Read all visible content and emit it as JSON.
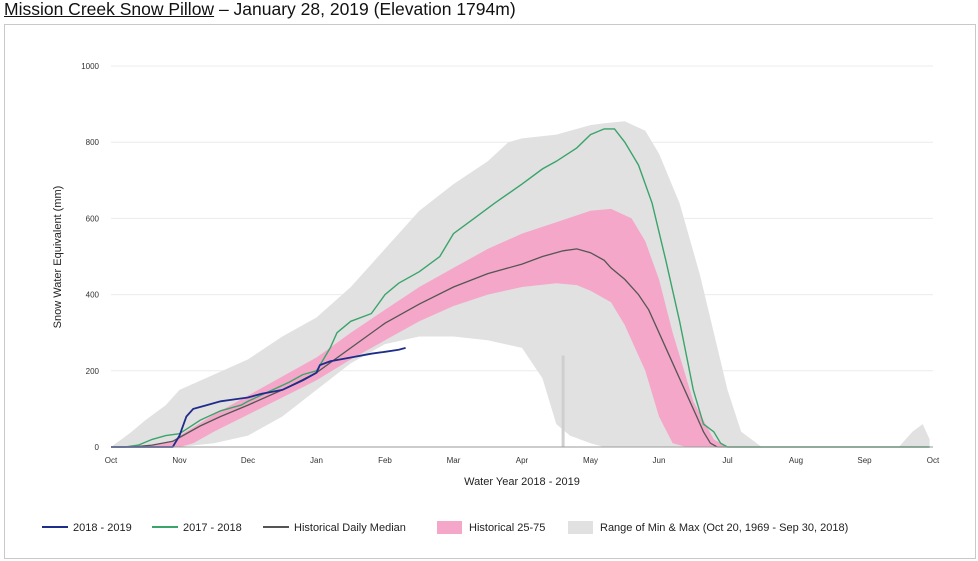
{
  "title": {
    "link_text": "Mission Creek Snow Pillow",
    "rest_text": " – January 28, 2019 (Elevation 1794m)"
  },
  "chart_data": {
    "type": "line",
    "xlabel": "Water Year 2018 - 2019",
    "ylabel": "Snow Water Equivalent (mm)",
    "ylim": [
      0,
      1000
    ],
    "yticks": [
      "0",
      "200",
      "400",
      "600",
      "800",
      "1000"
    ],
    "xticks": [
      "Oct",
      "Nov",
      "Dec",
      "Jan",
      "Feb",
      "Mar",
      "Apr",
      "May",
      "Jun",
      "Jul",
      "Aug",
      "Sep",
      "Oct"
    ],
    "grid": "horizontal",
    "legend_position": "bottom",
    "colors": {
      "s2019": "#1f2d8a",
      "s2018": "#3aa46a",
      "median": "#555555",
      "band": "#f4a7c9",
      "range": "#e1e1e1"
    },
    "legend": [
      {
        "label": "2018 - 2019",
        "kind": "line",
        "color": "#1f2d8a"
      },
      {
        "label": "2017 - 2018",
        "kind": "line",
        "color": "#3aa46a"
      },
      {
        "label": "Historical Daily Median",
        "kind": "line",
        "color": "#555555"
      },
      {
        "label": "Historical 25-75",
        "kind": "box",
        "color": "#f4a7c9"
      },
      {
        "label": "Range of Min & Max (Oct 20, 1969 - Sep 30, 2018)",
        "kind": "box",
        "color": "#e1e1e1"
      }
    ],
    "range_max": {
      "x": [
        0,
        0.3,
        0.5,
        0.8,
        1,
        1.5,
        2,
        2.5,
        3,
        3.5,
        4,
        4.5,
        5,
        5.5,
        5.8,
        6,
        6.5,
        7,
        7.2,
        7.5,
        7.8,
        8,
        8.3,
        8.6,
        8.8,
        9,
        9.2,
        9.5,
        10,
        11,
        11.5,
        11.7,
        11.85,
        11.95
      ],
      "y": [
        0,
        40,
        70,
        110,
        150,
        190,
        230,
        290,
        340,
        420,
        520,
        620,
        690,
        750,
        800,
        810,
        820,
        845,
        850,
        855,
        830,
        770,
        640,
        450,
        300,
        150,
        40,
        0,
        0,
        0,
        0,
        40,
        60,
        20
      ]
    },
    "range_min": {
      "x": [
        0,
        0.5,
        1,
        1.5,
        2,
        2.5,
        3,
        3.5,
        4,
        4.5,
        5,
        5.5,
        6,
        6.3,
        6.5,
        6.7,
        7,
        7.2,
        7.4,
        7.6,
        7.8,
        8,
        8.3,
        8.6,
        11.95
      ],
      "y": [
        0,
        0,
        0,
        10,
        30,
        80,
        150,
        220,
        270,
        290,
        290,
        280,
        260,
        180,
        60,
        30,
        10,
        0,
        0,
        0,
        0,
        0,
        0,
        0,
        0
      ]
    },
    "band75": {
      "x": [
        0,
        0.3,
        0.6,
        0.9,
        1,
        1.5,
        2,
        2.5,
        3,
        3.5,
        4,
        4.5,
        5,
        5.5,
        6,
        6.5,
        7,
        7.3,
        7.6,
        7.8,
        8,
        8.2,
        8.5,
        8.8,
        9,
        11.95
      ],
      "y": [
        0,
        0,
        5,
        15,
        30,
        85,
        135,
        185,
        235,
        300,
        360,
        420,
        470,
        520,
        560,
        590,
        620,
        625,
        600,
        540,
        440,
        300,
        120,
        20,
        0,
        0
      ]
    },
    "band25": {
      "x": [
        0,
        0.5,
        1,
        1.2,
        1.5,
        2,
        2.5,
        3,
        3.5,
        4,
        4.5,
        5,
        5.5,
        6,
        6.5,
        6.8,
        7,
        7.3,
        7.5,
        7.8,
        8,
        8.2,
        8.4,
        11.95
      ],
      "y": [
        0,
        0,
        0,
        10,
        40,
        85,
        130,
        175,
        230,
        280,
        330,
        370,
        400,
        420,
        430,
        425,
        410,
        380,
        320,
        200,
        80,
        10,
        0,
        0
      ]
    },
    "median_line": {
      "x": [
        0,
        0.3,
        0.6,
        0.9,
        1,
        1.3,
        1.6,
        2,
        2.5,
        3,
        3.5,
        4,
        4.5,
        5,
        5.5,
        6,
        6.3,
        6.6,
        6.8,
        7,
        7.2,
        7.3,
        7.5,
        7.7,
        7.85,
        8,
        8.2,
        8.4,
        8.55,
        8.65,
        8.75,
        8.85,
        8.95,
        11.95
      ],
      "y": [
        0,
        0,
        5,
        15,
        25,
        55,
        80,
        110,
        150,
        195,
        260,
        325,
        375,
        420,
        455,
        480,
        500,
        515,
        520,
        510,
        490,
        470,
        440,
        400,
        360,
        300,
        220,
        140,
        80,
        40,
        10,
        0,
        0,
        0
      ]
    },
    "s2018": {
      "x": [
        0,
        0.2,
        0.4,
        0.6,
        0.8,
        1,
        1.3,
        1.6,
        1.9,
        2,
        2.3,
        2.6,
        2.8,
        3,
        3.1,
        3.2,
        3.3,
        3.5,
        3.8,
        4,
        4.2,
        4.5,
        4.8,
        5,
        5.3,
        5.6,
        6,
        6.3,
        6.5,
        6.8,
        7,
        7.2,
        7.35,
        7.5,
        7.7,
        7.9,
        8.1,
        8.3,
        8.5,
        8.65,
        8.8,
        8.9,
        9,
        9.1,
        9.3,
        11.95
      ],
      "y": [
        0,
        0,
        5,
        20,
        30,
        35,
        70,
        95,
        110,
        120,
        145,
        170,
        190,
        200,
        230,
        260,
        300,
        330,
        350,
        400,
        430,
        460,
        500,
        560,
        600,
        640,
        690,
        730,
        750,
        785,
        820,
        835,
        835,
        800,
        740,
        640,
        490,
        330,
        150,
        60,
        40,
        10,
        0,
        0,
        0,
        0
      ]
    },
    "s2019": {
      "x": [
        0,
        0.5,
        0.9,
        1,
        1.1,
        1.2,
        1.3,
        1.4,
        1.6,
        1.8,
        2,
        2.2,
        2.5,
        2.8,
        3,
        3.05,
        3.2,
        3.5,
        3.8,
        4,
        4.2,
        4.3
      ],
      "y": [
        0,
        0,
        0,
        30,
        80,
        100,
        105,
        110,
        120,
        125,
        130,
        140,
        150,
        175,
        195,
        215,
        225,
        235,
        245,
        250,
        255,
        260
      ]
    }
  }
}
